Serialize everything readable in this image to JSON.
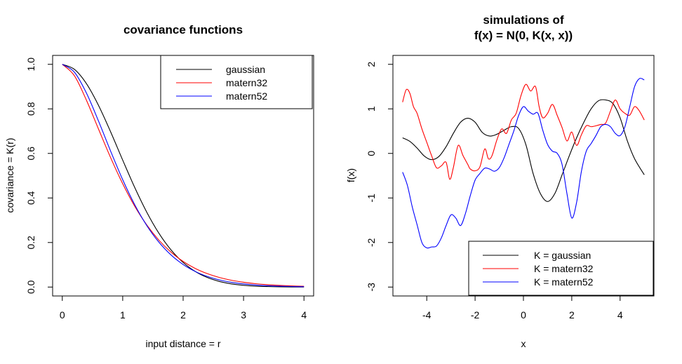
{
  "chart_data": [
    {
      "type": "line",
      "title": "covariance functions",
      "xlabel": "input distance = r",
      "ylabel": "covariance = K(r)",
      "xlim": [
        -0.16,
        4.16
      ],
      "ylim": [
        -0.04,
        1.04
      ],
      "xticks": [
        0,
        1,
        2,
        3,
        4
      ],
      "yticks": [
        0.0,
        0.2,
        0.4,
        0.6,
        0.8,
        1.0
      ],
      "xtick_labels": [
        "0",
        "1",
        "2",
        "3",
        "4"
      ],
      "ytick_labels": [
        "0.0",
        "0.2",
        "0.4",
        "0.6",
        "0.8",
        "1.0"
      ],
      "grid": false,
      "legend_position": "top-right",
      "x": [
        0.0,
        0.2,
        0.4,
        0.6,
        0.8,
        1.0,
        1.2,
        1.4,
        1.6,
        1.8,
        2.0,
        2.2,
        2.4,
        2.6,
        2.8,
        3.0,
        3.2,
        3.4,
        3.6,
        3.8,
        4.0
      ],
      "series": [
        {
          "name": "gaussian",
          "color": "#000000",
          "values": [
            1.0,
            0.9775,
            0.9131,
            0.8154,
            0.6969,
            0.5698,
            0.4464,
            0.3352,
            0.2412,
            0.1666,
            0.1103,
            0.0702,
            0.0429,
            0.0252,
            0.0142,
            0.0077,
            0.004,
            0.0021,
            0.001,
            0.0005,
            0.0002
          ]
        },
        {
          "name": "matern32",
          "color": "#ff0000",
          "values": [
            1.0,
            0.9488,
            0.8385,
            0.709,
            0.5809,
            0.4637,
            0.3623,
            0.2781,
            0.2101,
            0.1565,
            0.1151,
            0.0837,
            0.0603,
            0.0431,
            0.0305,
            0.0215,
            0.0151,
            0.0105,
            0.0073,
            0.005,
            0.0035
          ]
        },
        {
          "name": "matern52",
          "color": "#0000ff",
          "values": [
            1.0,
            0.9649,
            0.8707,
            0.7449,
            0.6101,
            0.4818,
            0.369,
            0.2756,
            0.2012,
            0.144,
            0.1012,
            0.07,
            0.0477,
            0.0321,
            0.0213,
            0.014,
            0.0091,
            0.0059,
            0.0038,
            0.0024,
            0.0015
          ]
        }
      ]
    },
    {
      "type": "line",
      "title": "simulations of\nf(x) = N(0, K(x, x))",
      "title_lines": [
        "simulations of",
        "f(x) = N(0, K(x, x))"
      ],
      "xlabel": "x",
      "ylabel": "f(x)",
      "xlim": [
        -5.4,
        5.4
      ],
      "ylim": [
        -3.2,
        2.2
      ],
      "xticks": [
        -4,
        -2,
        0,
        2,
        4
      ],
      "yticks": [
        -3,
        -2,
        -1,
        0,
        1,
        2
      ],
      "xtick_labels": [
        "-4",
        "-2",
        "0",
        "2",
        "4"
      ],
      "ytick_labels": [
        "-3",
        "-2",
        "-1",
        "0",
        "1",
        "2"
      ],
      "grid": false,
      "legend_position": "bottom-right",
      "series": [
        {
          "name": "K = gaussian",
          "color": "#000000",
          "x": [
            -5.0,
            -4.7,
            -4.4,
            -4.1,
            -3.8,
            -3.5,
            -3.2,
            -2.9,
            -2.6,
            -2.3,
            -2.0,
            -1.7,
            -1.4,
            -1.1,
            -0.8,
            -0.5,
            -0.2,
            0.1,
            0.4,
            0.7,
            1.0,
            1.3,
            1.6,
            1.9,
            2.2,
            2.5,
            2.8,
            3.1,
            3.4,
            3.7,
            4.0,
            4.3,
            4.6,
            5.0
          ],
          "values": [
            0.35,
            0.27,
            0.12,
            -0.06,
            -0.14,
            -0.07,
            0.15,
            0.45,
            0.7,
            0.79,
            0.7,
            0.47,
            0.39,
            0.43,
            0.52,
            0.6,
            0.56,
            0.2,
            -0.45,
            -0.9,
            -1.08,
            -0.9,
            -0.48,
            -0.05,
            0.35,
            0.7,
            1.0,
            1.18,
            1.2,
            1.12,
            0.8,
            0.28,
            -0.12,
            -0.48
          ]
        },
        {
          "name": "K = matern32",
          "color": "#ff0000",
          "x": [
            -5.0,
            -4.85,
            -4.7,
            -4.55,
            -4.4,
            -4.2,
            -4.0,
            -3.8,
            -3.6,
            -3.4,
            -3.2,
            -3.05,
            -2.9,
            -2.7,
            -2.5,
            -2.3,
            -2.2,
            -2.0,
            -1.8,
            -1.6,
            -1.45,
            -1.3,
            -1.1,
            -0.9,
            -0.7,
            -0.5,
            -0.3,
            -0.1,
            0.1,
            0.3,
            0.5,
            0.65,
            0.8,
            1.0,
            1.2,
            1.4,
            1.6,
            1.8,
            2.0,
            2.2,
            2.4,
            2.6,
            2.8,
            3.0,
            3.2,
            3.4,
            3.6,
            3.8,
            4.0,
            4.2,
            4.4,
            4.6,
            4.8,
            5.0
          ],
          "values": [
            1.15,
            1.43,
            1.35,
            1.05,
            0.9,
            0.55,
            0.25,
            -0.05,
            -0.32,
            -0.28,
            -0.2,
            -0.58,
            -0.32,
            0.18,
            -0.05,
            -0.25,
            -0.35,
            -0.39,
            -0.3,
            0.1,
            -0.12,
            -0.05,
            0.3,
            0.55,
            0.45,
            0.75,
            0.9,
            1.3,
            1.55,
            1.4,
            1.5,
            1.05,
            0.8,
            0.9,
            1.1,
            0.85,
            0.58,
            0.28,
            0.48,
            0.18,
            0.42,
            0.62,
            0.6,
            0.62,
            0.65,
            0.68,
            0.95,
            1.2,
            1.0,
            0.9,
            0.86,
            1.05,
            0.95,
            0.75
          ]
        },
        {
          "name": "K = matern52",
          "color": "#0000ff",
          "x": [
            -5.0,
            -4.8,
            -4.6,
            -4.4,
            -4.2,
            -4.0,
            -3.8,
            -3.6,
            -3.4,
            -3.2,
            -3.0,
            -2.8,
            -2.6,
            -2.4,
            -2.2,
            -2.0,
            -1.8,
            -1.6,
            -1.4,
            -1.2,
            -1.0,
            -0.8,
            -0.6,
            -0.4,
            -0.2,
            0.0,
            0.2,
            0.4,
            0.6,
            0.8,
            1.0,
            1.2,
            1.4,
            1.6,
            1.8,
            2.0,
            2.2,
            2.4,
            2.6,
            2.8,
            3.0,
            3.2,
            3.4,
            3.6,
            3.8,
            4.0,
            4.2,
            4.4,
            4.6,
            4.8,
            5.0
          ],
          "values": [
            -0.42,
            -0.72,
            -1.2,
            -1.6,
            -2.0,
            -2.12,
            -2.1,
            -2.08,
            -1.9,
            -1.62,
            -1.38,
            -1.45,
            -1.62,
            -1.35,
            -0.95,
            -0.6,
            -0.45,
            -0.33,
            -0.35,
            -0.4,
            -0.32,
            -0.1,
            0.2,
            0.5,
            0.85,
            1.05,
            0.95,
            0.88,
            0.9,
            0.52,
            0.2,
            0.05,
            0.0,
            -0.25,
            -0.9,
            -1.45,
            -1.1,
            -0.4,
            0.05,
            0.22,
            0.4,
            0.6,
            0.65,
            0.6,
            0.45,
            0.4,
            0.6,
            1.05,
            1.5,
            1.68,
            1.65
          ]
        }
      ]
    }
  ]
}
